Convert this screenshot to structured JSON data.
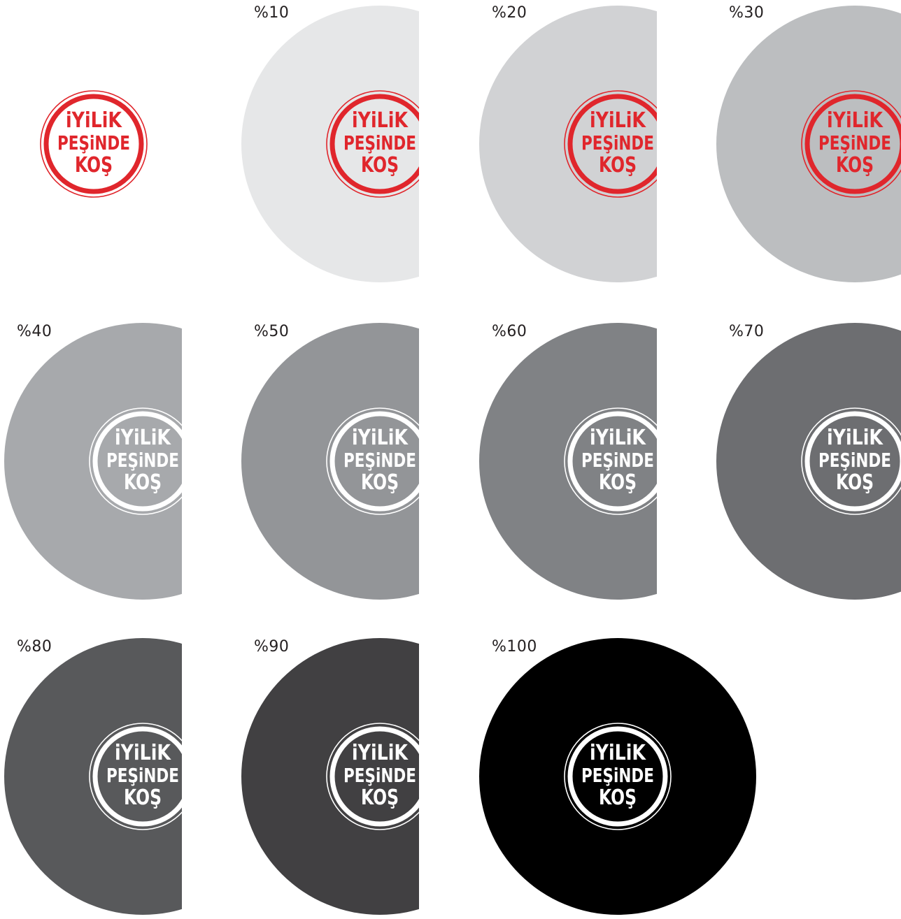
{
  "logo": {
    "lines": [
      "iYiLiK",
      "PEŞiNDE",
      "KOŞ"
    ],
    "color_on_light": "#e0262c",
    "color_on_dark": "#ffffff"
  },
  "swatches": [
    {
      "label": "",
      "fill": "#ffffff",
      "logo_color": "#e0262c"
    },
    {
      "label": "%10",
      "fill": "#e6e7e8",
      "logo_color": "#e0262c"
    },
    {
      "label": "%20",
      "fill": "#d1d2d4",
      "logo_color": "#e0262c"
    },
    {
      "label": "%30",
      "fill": "#bcbec0",
      "logo_color": "#e0262c"
    },
    {
      "label": "%40",
      "fill": "#a7a9ac",
      "logo_color": "#ffffff"
    },
    {
      "label": "%50",
      "fill": "#939598",
      "logo_color": "#ffffff"
    },
    {
      "label": "%60",
      "fill": "#808285",
      "logo_color": "#ffffff"
    },
    {
      "label": "%70",
      "fill": "#6d6e71",
      "logo_color": "#ffffff"
    },
    {
      "label": "%80",
      "fill": "#58595b",
      "logo_color": "#ffffff"
    },
    {
      "label": "%90",
      "fill": "#414042",
      "logo_color": "#ffffff"
    },
    {
      "label": "%100",
      "fill": "#000000",
      "logo_color": "#ffffff"
    }
  ]
}
